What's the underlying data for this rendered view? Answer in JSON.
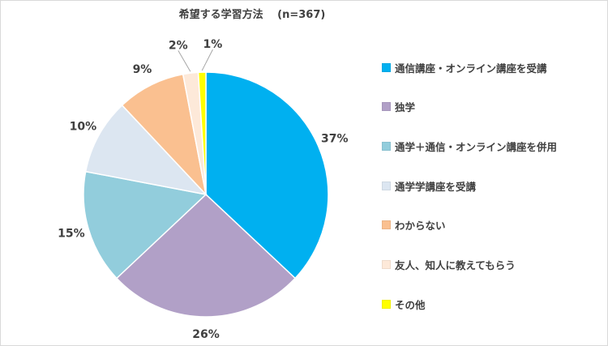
{
  "chart_data": {
    "type": "pie",
    "title": "希望する学習方法　 (n=367)",
    "categories": [
      "通信講座・オンライン講座を受講",
      "独学",
      "通学＋通信・オンライン講座を併用",
      "通学学講座を受講",
      "わからない",
      "友人、知人に教えてもらう",
      "その他"
    ],
    "values": [
      37,
      26,
      15,
      10,
      9,
      2,
      1
    ],
    "data_labels": [
      "37%",
      "26%",
      "15%",
      "10%",
      "9%",
      "2%",
      "1%"
    ],
    "colors": [
      "#00b0f0",
      "#b1a0c7",
      "#92cddc",
      "#dce6f1",
      "#fac090",
      "#fde9d9",
      "#ffff00"
    ],
    "legend_position": "right",
    "start_angle_deg": 0,
    "direction": "clockwise"
  }
}
